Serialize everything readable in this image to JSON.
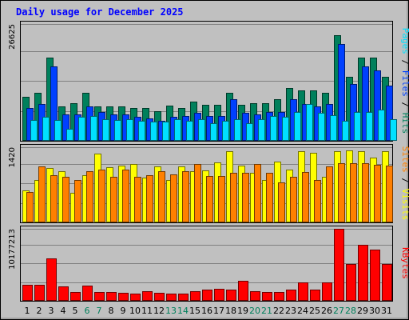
{
  "chart_data": [
    {
      "type": "bar",
      "title": "Daily usage for December 2025",
      "categories": [
        "1",
        "2",
        "3",
        "4",
        "5",
        "6",
        "7",
        "8",
        "9",
        "10",
        "11",
        "12",
        "13",
        "14",
        "15",
        "16",
        "17",
        "18",
        "19",
        "20",
        "21",
        "22",
        "23",
        "24",
        "25",
        "26",
        "27",
        "28",
        "29",
        "30",
        "31"
      ],
      "weekend_days": [
        "6",
        "7",
        "13",
        "14",
        "20",
        "21",
        "27",
        "28"
      ],
      "ytick": "26625",
      "ylim": [
        0,
        26625
      ],
      "series": [
        {
          "name": "Hits",
          "color": "#00805C",
          "values": [
            10000,
            11000,
            19000,
            7800,
            8600,
            11000,
            7800,
            7800,
            7800,
            7500,
            7500,
            6800,
            8000,
            7500,
            8900,
            8200,
            8200,
            11000,
            8200,
            8600,
            8600,
            9400,
            12000,
            11500,
            11500,
            11000,
            24000,
            14500,
            19000,
            19000,
            14500
          ]
        },
        {
          "name": "Files",
          "color": "#0040FF",
          "values": [
            7500,
            8400,
            17000,
            6000,
            6000,
            7800,
            6600,
            6000,
            6000,
            5400,
            5100,
            4600,
            5400,
            5700,
            6300,
            5700,
            5700,
            9400,
            6300,
            6000,
            6600,
            6600,
            9400,
            8400,
            7800,
            8400,
            22000,
            13000,
            17000,
            16000,
            12500
          ]
        },
        {
          "name": "Pages",
          "color": "#00E0FF",
          "values": [
            4700,
            5400,
            4700,
            2700,
            5400,
            5700,
            4900,
            4700,
            4900,
            4600,
            4300,
            4300,
            4900,
            4600,
            4900,
            4100,
            4600,
            4900,
            4100,
            4900,
            5700,
            5400,
            6600,
            8400,
            6300,
            5800,
            4600,
            6600,
            6600,
            7200,
            4900
          ]
        }
      ],
      "series_label_colors": {
        "Hits": "#00805C",
        "Files": "#0040FF",
        "Pages": "#00E0FF"
      }
    },
    {
      "type": "bar",
      "ytick": "1420",
      "ylim": [
        0,
        1420
      ],
      "series": [
        {
          "name": "Visits",
          "color": "#FFFF00",
          "values": [
            610,
            800,
            1020,
            970,
            560,
            890,
            1300,
            1040,
            1070,
            1100,
            840,
            1060,
            800,
            1060,
            960,
            980,
            1140,
            1340,
            1080,
            940,
            800,
            1150,
            1000,
            1340,
            1310,
            860,
            1340,
            1360,
            1340,
            1220,
            1340
          ]
        },
        {
          "name": "Sites",
          "color": "#FF8000",
          "values": [
            570,
            1060,
            890,
            860,
            800,
            960,
            1000,
            860,
            1000,
            860,
            890,
            960,
            900,
            960,
            1100,
            870,
            880,
            930,
            940,
            1100,
            930,
            760,
            860,
            950,
            800,
            1050,
            1120,
            1120,
            1120,
            1090,
            1080
          ]
        }
      ],
      "series_label_colors": {
        "Visits": "#FFFF00",
        "Sites": "#FF8000"
      }
    },
    {
      "type": "bar",
      "ytick": "10177213",
      "ylim": [
        0,
        10177213
      ],
      "series": [
        {
          "name": "KBytes",
          "color": "#FF0000",
          "values": [
            2300000,
            2300000,
            6000000,
            2000000,
            1200000,
            2200000,
            1300000,
            1300000,
            1100000,
            1000000,
            1400000,
            1100000,
            1000000,
            1000000,
            1400000,
            1600000,
            1700000,
            1600000,
            2800000,
            1400000,
            1200000,
            1200000,
            1600000,
            2600000,
            1600000,
            2600000,
            10177213,
            5200000,
            7900000,
            7200000,
            5200000
          ]
        }
      ],
      "series_label_colors": {
        "KBytes": "#FF0000"
      }
    }
  ]
}
